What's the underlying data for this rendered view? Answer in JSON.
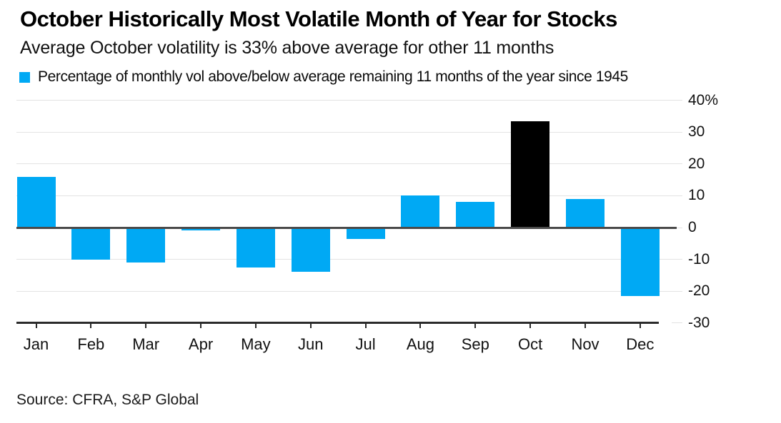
{
  "title": "October Historically Most Volatile Month of Year for Stocks",
  "subtitle": "Average October volatility is 33% above average for other 11 months",
  "legend": {
    "label": "Percentage of monthly vol above/below average remaining 11 months of the year since 1945",
    "swatch_color": "#00A9F4"
  },
  "source": "Source: CFRA, S&P Global",
  "colors": {
    "bar": "#00A9F4",
    "highlight_bar": "#000000",
    "gridline": "#e3e3e3",
    "zero_line": "#4a4a4a",
    "axis_line": "#2b2b2b",
    "text": "#111111"
  },
  "chart_data": {
    "type": "bar",
    "title": "October Historically Most Volatile Month of Year for Stocks",
    "subtitle": "Average October volatility is 33% above average for other 11 months",
    "series_label": "Percentage of monthly vol above/below average remaining 11 months of the year since 1945",
    "categories": [
      "Jan",
      "Feb",
      "Mar",
      "Apr",
      "May",
      "Jun",
      "Jul",
      "Aug",
      "Sep",
      "Oct",
      "Nov",
      "Dec"
    ],
    "values": [
      16,
      -10,
      -11,
      -1,
      -12.5,
      -14,
      -3.5,
      10,
      8,
      33.5,
      9,
      -21.5
    ],
    "highlight_category": "Oct",
    "yticks": [
      40,
      30,
      20,
      10,
      0,
      -10,
      -20,
      -30
    ],
    "ytick_labels": [
      "40%",
      "30",
      "20",
      "10",
      "0",
      "-10",
      "-20",
      "-30"
    ],
    "ylim": [
      -30,
      40
    ],
    "grid": "horizontal",
    "legend_position": "top-left",
    "value_axis_side": "right",
    "source": "Source: CFRA, S&P Global"
  }
}
